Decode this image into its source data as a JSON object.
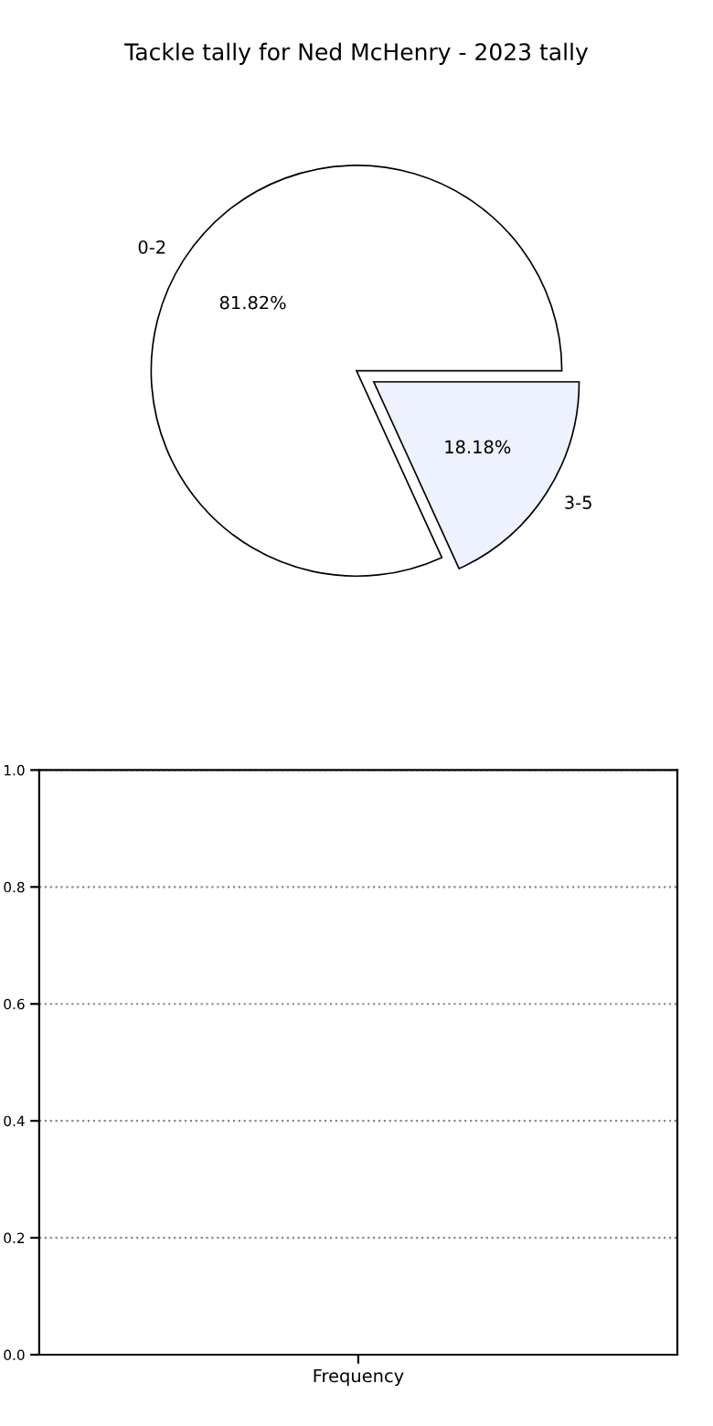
{
  "chart_data": [
    {
      "type": "pie",
      "title": "Tackle tally for Ned McHenry - 2023 tally",
      "categories": [
        "0-2",
        "3-5"
      ],
      "values": [
        81.82,
        18.18
      ],
      "colors": [
        "#ffffff",
        "#eef2ff"
      ],
      "value_labels": [
        "81.82%",
        "18.18%"
      ]
    },
    {
      "type": "bar",
      "xlabel": "Frequency",
      "categories": [
        null
      ],
      "values": [
        null
      ],
      "ylim": [
        0,
        1
      ],
      "yticks": [
        {
          "value": 0,
          "label": "0.0"
        },
        {
          "value": 0.2,
          "label": "0.2"
        },
        {
          "value": 0.4,
          "label": "0.4"
        },
        {
          "value": 0.6,
          "label": "0.6"
        },
        {
          "value": 0.8,
          "label": "0.8"
        },
        {
          "value": 1,
          "label": "1.0"
        }
      ],
      "grid": "y"
    }
  ]
}
